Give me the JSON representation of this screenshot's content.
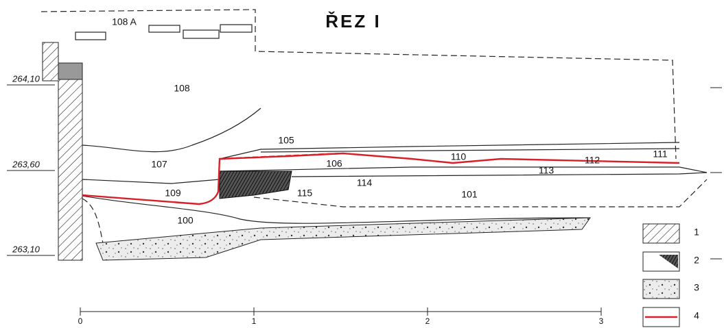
{
  "title": "ŘEZ I",
  "layers": [
    "108 A",
    "108",
    "105",
    "107",
    "106",
    "110",
    "111",
    "112",
    "113",
    "114",
    "109",
    "115",
    "101",
    "100"
  ],
  "elevations": [
    "264,10",
    "263,60",
    "263,10"
  ],
  "legend": [
    "1",
    "2",
    "3",
    "4"
  ],
  "scale": [
    "0",
    "1",
    "2",
    "3"
  ]
}
